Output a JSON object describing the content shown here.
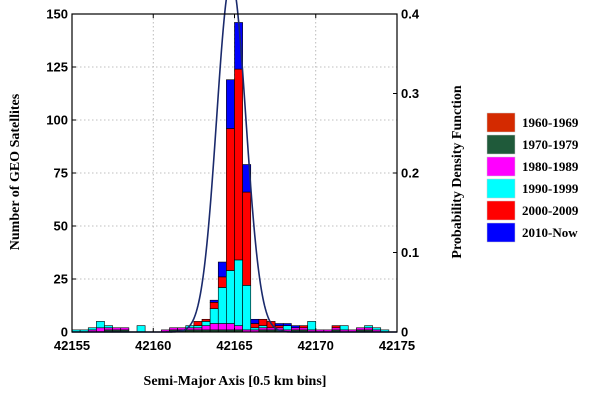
{
  "chart_data": {
    "type": "bar",
    "stacked": true,
    "bin_width": 0.5,
    "xlabel": "Semi-Major Axis [0.5 km bins]",
    "ylabel": "Number of GEO Satellites",
    "y2label": "Probability Density Function",
    "xlim": [
      42155,
      42175
    ],
    "ylim": [
      0,
      150
    ],
    "y2lim": [
      0,
      0.4
    ],
    "xticks": [
      42155,
      42160,
      42165,
      42170,
      42175
    ],
    "yticks": [
      0,
      25,
      50,
      75,
      100,
      125,
      150
    ],
    "y2ticks": [
      0,
      0.1,
      0.2,
      0.3,
      0.4
    ],
    "y2tick_labels": [
      "0",
      "0.1",
      "0.2",
      "0.3",
      "0.4"
    ],
    "grid": true,
    "legend_position": "right",
    "x": [
      42155.25,
      42155.75,
      42156.25,
      42156.75,
      42157.25,
      42157.75,
      42158.25,
      42158.75,
      42159.25,
      42159.75,
      42160.25,
      42160.75,
      42161.25,
      42161.75,
      42162.25,
      42162.75,
      42163.25,
      42163.75,
      42164.25,
      42164.75,
      42165.25,
      42165.75,
      42166.25,
      42166.75,
      42167.25,
      42167.75,
      42168.25,
      42168.75,
      42169.25,
      42169.75,
      42170.25,
      42170.75,
      42171.25,
      42171.75,
      42172.25,
      42172.75,
      42173.25,
      42173.75,
      42174.25,
      42174.75
    ],
    "series": [
      {
        "name": "1960-1969",
        "color": "#d42a00",
        "values": [
          0,
          0,
          0,
          0,
          0,
          0,
          0,
          0,
          0,
          0,
          0,
          0,
          0,
          0,
          0,
          0,
          0,
          0,
          0,
          0,
          0,
          0,
          0,
          0,
          0,
          0,
          0,
          0,
          0,
          0,
          0,
          0,
          0,
          0,
          0,
          0,
          0,
          0,
          0,
          0
        ]
      },
      {
        "name": "1970-1979",
        "color": "#1f5a3a",
        "values": [
          0,
          0,
          0,
          0,
          1,
          1,
          1,
          0,
          0,
          0,
          0,
          0,
          1,
          1,
          1,
          1,
          1,
          1,
          1,
          1,
          1,
          0,
          0,
          1,
          1,
          1,
          0,
          1,
          1,
          0,
          0,
          0,
          1,
          0,
          0,
          1,
          1,
          0,
          0,
          0
        ]
      },
      {
        "name": "1980-1989",
        "color": "#ff00ff",
        "values": [
          0,
          0,
          1,
          2,
          1,
          1,
          1,
          0,
          0,
          0,
          0,
          1,
          1,
          1,
          1,
          1,
          2,
          3,
          3,
          3,
          2,
          1,
          1,
          1,
          1,
          1,
          1,
          1,
          1,
          1,
          1,
          1,
          1,
          1,
          1,
          1,
          1,
          1,
          0,
          0
        ]
      },
      {
        "name": "1990-1999",
        "color": "#00ffff",
        "values": [
          1,
          1,
          1,
          3,
          1,
          0,
          0,
          0,
          3,
          0,
          0,
          0,
          0,
          0,
          1,
          1,
          2,
          7,
          17,
          25,
          31,
          21,
          1,
          1,
          0,
          0,
          2,
          0,
          0,
          4,
          0,
          0,
          0,
          2,
          0,
          0,
          1,
          1,
          1,
          0
        ]
      },
      {
        "name": "2000-2009",
        "color": "#ff0000",
        "values": [
          0,
          0,
          0,
          0,
          0,
          0,
          0,
          0,
          0,
          0,
          0,
          0,
          0,
          0,
          0,
          2,
          1,
          3,
          5,
          67,
          90,
          44,
          2,
          3,
          3,
          1,
          0,
          0,
          1,
          0,
          0,
          0,
          1,
          0,
          0,
          0,
          0,
          0,
          0,
          0
        ]
      },
      {
        "name": "2010-Now",
        "color": "#0000ff",
        "values": [
          0,
          0,
          0,
          0,
          0,
          0,
          0,
          0,
          0,
          0,
          0,
          0,
          0,
          0,
          0,
          0,
          0,
          1,
          7,
          23,
          22,
          13,
          2,
          0,
          0,
          1,
          1,
          1,
          0,
          0,
          0,
          0,
          0,
          0,
          0,
          0,
          0,
          0,
          0,
          0
        ]
      }
    ],
    "pdf": {
      "name": "Probability Density Function",
      "mean": 42164.8,
      "std": 0.9
    }
  }
}
